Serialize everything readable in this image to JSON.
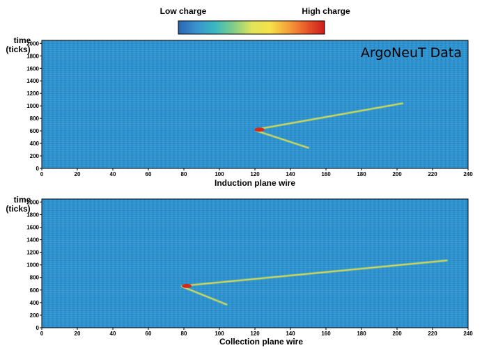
{
  "colorbar": {
    "low_label": "Low charge",
    "high_label": "High charge",
    "stops": [
      "#2a66b0",
      "#3a93d0",
      "#39b8c0",
      "#7fcc8a",
      "#dfe35a",
      "#f6e24a",
      "#f5a23a",
      "#e85a2a",
      "#cc1b1b"
    ]
  },
  "colors": {
    "background": "#2b8fcc",
    "track": "#dcd25a",
    "hot": "#d32a1e"
  },
  "chart_data": [
    {
      "type": "heatmap",
      "title": "ArgoNeuT Data",
      "xlabel": "Induction plane wire",
      "ylabel_line1": "time",
      "ylabel_line2": "(ticks)",
      "xlim": [
        0,
        240
      ],
      "ylim": [
        0,
        2048
      ],
      "xticks": [
        0,
        20,
        40,
        60,
        80,
        100,
        120,
        140,
        160,
        180,
        200,
        220,
        240
      ],
      "yticks": [
        0,
        200,
        400,
        600,
        800,
        1000,
        1200,
        1400,
        1600,
        1800,
        2000
      ],
      "tracks": [
        {
          "name": "long-track",
          "points": [
            [
              121,
              625
            ],
            [
              203,
              1040
            ]
          ]
        },
        {
          "name": "short-track",
          "points": [
            [
              121,
              600
            ],
            [
              150,
              330
            ]
          ]
        }
      ],
      "vertex": [
        121,
        620
      ]
    },
    {
      "type": "heatmap",
      "title": "",
      "xlabel": "Collection plane wire",
      "ylabel_line1": "time",
      "ylabel_line2": "(ticks)",
      "xlim": [
        0,
        240
      ],
      "ylim": [
        0,
        2048
      ],
      "xticks": [
        0,
        20,
        40,
        60,
        80,
        100,
        120,
        140,
        160,
        180,
        200,
        220,
        240
      ],
      "yticks": [
        0,
        200,
        400,
        600,
        800,
        1000,
        1200,
        1400,
        1600,
        1800,
        2000
      ],
      "tracks": [
        {
          "name": "long-track",
          "points": [
            [
              79,
              665
            ],
            [
              228,
              1070
            ]
          ]
        },
        {
          "name": "short-track",
          "points": [
            [
              79,
              655
            ],
            [
              104,
              370
            ]
          ]
        }
      ],
      "vertex": [
        80,
        665
      ]
    }
  ]
}
